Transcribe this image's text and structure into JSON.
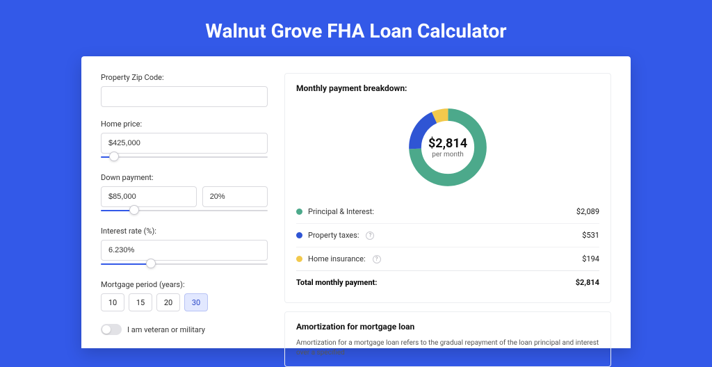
{
  "title": "Walnut Grove FHA Loan Calculator",
  "form": {
    "zip_label": "Property Zip Code:",
    "zip_value": "",
    "home_price_label": "Home price:",
    "home_price_value": "$425,000",
    "home_price_slider_pct": 8,
    "down_payment_label": "Down payment:",
    "down_payment_value": "$85,000",
    "down_payment_pct_value": "20%",
    "down_payment_slider_pct": 20,
    "interest_label": "Interest rate (%):",
    "interest_value": "6.230%",
    "interest_slider_pct": 30,
    "period_label": "Mortgage period (years):",
    "period_options": [
      "10",
      "15",
      "20",
      "30"
    ],
    "period_selected": "30",
    "veteran_label": "I am veteran or military"
  },
  "breakdown": {
    "title": "Monthly payment breakdown:",
    "chart": {
      "type": "donut",
      "center_value": "$2,814",
      "center_sub": "per month",
      "segments": [
        {
          "key": "principal_interest",
          "value": 2089,
          "color": "#4ca98b"
        },
        {
          "key": "property_taxes",
          "value": 531,
          "color": "#2f55d4"
        },
        {
          "key": "home_insurance",
          "value": 194,
          "color": "#f2c94c"
        }
      ],
      "ring_thickness": 17,
      "background": "#ffffff"
    },
    "rows": [
      {
        "label": "Principal & Interest:",
        "value": "$2,089",
        "color": "#4ca98b",
        "info": false
      },
      {
        "label": "Property taxes:",
        "value": "$531",
        "color": "#2f55d4",
        "info": true
      },
      {
        "label": "Home insurance:",
        "value": "$194",
        "color": "#f2c94c",
        "info": true
      }
    ],
    "total_label": "Total monthly payment:",
    "total_value": "$2,814"
  },
  "amortization": {
    "title": "Amortization for mortgage loan",
    "text": "Amortization for a mortgage loan refers to the gradual repayment of the loan principal and interest over a specified"
  }
}
